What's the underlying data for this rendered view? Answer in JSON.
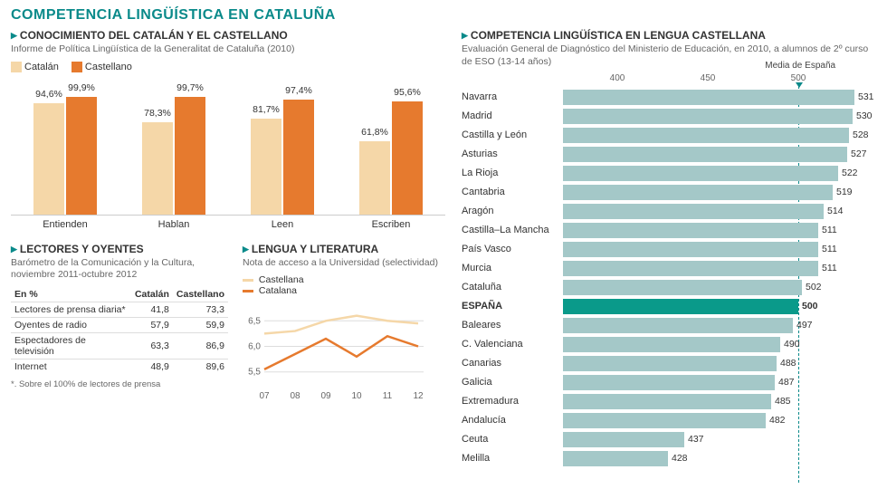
{
  "title": "COMPETENCIA LINGÜÍSTICA EN CATALUÑA",
  "colors": {
    "teal": "#0a8a8a",
    "catalan": "#f5d7a8",
    "castellano": "#e67a2e",
    "hbar": "#a4c8c8",
    "hbar_highlight": "#0a9a8a",
    "line_cast": "#f5d7a8",
    "line_cat": "#e67a2e"
  },
  "knowledge": {
    "title": "CONOCIMIENTO DEL CATALÁN Y EL CASTELLANO",
    "subtitle": "Informe de Política Lingüística de la Generalitat de Cataluña (2010)",
    "legend": {
      "a": "Catalán",
      "b": "Castellano"
    },
    "categories": [
      "Entienden",
      "Hablan",
      "Leen",
      "Escriben"
    ],
    "catalan": [
      94.6,
      78.3,
      81.7,
      61.8
    ],
    "castellano": [
      99.9,
      99.7,
      97.4,
      95.6
    ],
    "labels_cat": [
      "94,6%",
      "78,3%",
      "81,7%",
      "61,8%"
    ],
    "labels_cast": [
      "99,9%",
      "99,7%",
      "97,4%",
      "95,6%"
    ],
    "ymax": 100
  },
  "lectores": {
    "title": "LECTORES Y OYENTES",
    "subtitle": "Barómetro de la Comunicación y la Cultura,\nnoviembre 2011-octubre 2012",
    "header": [
      "En %",
      "Catalán",
      "Castellano"
    ],
    "rows": [
      [
        "Lectores de prensa diaria*",
        "41,8",
        "73,3"
      ],
      [
        "Oyentes de radio",
        "57,9",
        "59,9"
      ],
      [
        "Espectadores de televisión",
        "63,3",
        "86,9"
      ],
      [
        "Internet",
        "48,9",
        "89,6"
      ]
    ],
    "footnote": "*. Sobre el 100% de lectores de prensa"
  },
  "lengua": {
    "title": "LENGUA Y LITERATURA",
    "subtitle": "Nota de acceso a la Universidad (selectividad)",
    "legend": {
      "a": "Castellana",
      "b": "Catalana"
    },
    "years": [
      "07",
      "08",
      "09",
      "10",
      "11",
      "12"
    ],
    "castellana": [
      6.25,
      6.3,
      6.5,
      6.6,
      6.5,
      6.45
    ],
    "catalana": [
      5.55,
      5.85,
      6.15,
      5.8,
      6.2,
      6.0
    ],
    "ymin": 5.3,
    "ymax": 6.7,
    "yticks": [
      "5,5",
      "6,0",
      "6,5"
    ]
  },
  "competencia": {
    "title": "COMPETENCIA LINGÜÍSTICA EN LENGUA CASTELLANA",
    "subtitle": "Evaluación General de Diagnóstico del Ministerio de Educación, en 2010, a alumnos de 2º curso de  ESO (13-14 años)",
    "media_label": "Media de España",
    "xmin": 370,
    "xmax": 540,
    "xticks": [
      400,
      450,
      500
    ],
    "media": 500,
    "rows": [
      {
        "name": "Navarra",
        "val": 531
      },
      {
        "name": "Madrid",
        "val": 530
      },
      {
        "name": "Castilla y León",
        "val": 528
      },
      {
        "name": "Asturias",
        "val": 527
      },
      {
        "name": "La Rioja",
        "val": 522
      },
      {
        "name": "Cantabria",
        "val": 519
      },
      {
        "name": "Aragón",
        "val": 514
      },
      {
        "name": "Castilla–La Mancha",
        "val": 511
      },
      {
        "name": "País Vasco",
        "val": 511
      },
      {
        "name": "Murcia",
        "val": 511
      },
      {
        "name": "Cataluña",
        "val": 502
      },
      {
        "name": "ESPAÑA",
        "val": 500,
        "hl": true
      },
      {
        "name": "Baleares",
        "val": 497
      },
      {
        "name": "C. Valenciana",
        "val": 490
      },
      {
        "name": "Canarias",
        "val": 488
      },
      {
        "name": "Galicia",
        "val": 487
      },
      {
        "name": "Extremadura",
        "val": 485
      },
      {
        "name": "Andalucía",
        "val": 482
      },
      {
        "name": "Ceuta",
        "val": 437
      },
      {
        "name": "Melilla",
        "val": 428
      }
    ]
  }
}
